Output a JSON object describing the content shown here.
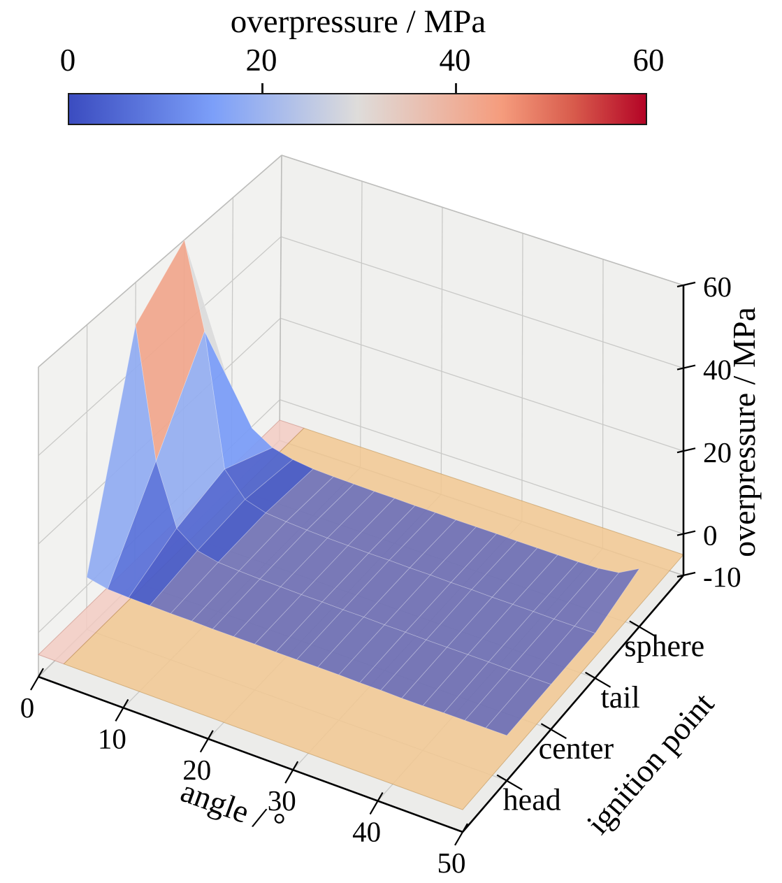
{
  "colorbar": {
    "title": "overpressure / MPa",
    "tick_labels": [
      "0",
      "20",
      "40",
      "60"
    ],
    "tick_values": [
      0,
      20,
      40,
      60
    ],
    "range": [
      0,
      60
    ],
    "colormap": "coolwarm",
    "gradient_stops": [
      "#3b4cc0",
      "#5b75dc",
      "#7c9ff9",
      "#adbeea",
      "#dedcda",
      "#eabcac",
      "#f59c7d",
      "#d85b4c",
      "#b40426"
    ]
  },
  "axes": {
    "x": {
      "label": "angle / °",
      "tick_labels": [
        "0",
        "10",
        "20",
        "30",
        "40",
        "50"
      ],
      "tick_values": [
        0,
        10,
        20,
        30,
        40,
        50
      ],
      "range": [
        0,
        50
      ]
    },
    "y": {
      "label": "ignition point",
      "tick_labels": [
        "head",
        "center",
        "tail",
        "sphere"
      ]
    },
    "z": {
      "label": "overpressure / MPa",
      "tick_labels": [
        "60",
        "40",
        "20",
        "0",
        "-10"
      ],
      "tick_values": [
        60,
        40,
        20,
        0,
        -10
      ],
      "range": [
        -10,
        60
      ]
    }
  },
  "chart_data": {
    "type": "surface",
    "title": "",
    "x_label": "angle / °",
    "y_label": "ignition point",
    "z_label": "overpressure / MPa",
    "x_angle_deg": [
      0,
      2.5,
      5,
      7.5,
      10,
      12.5,
      15,
      17.5,
      20,
      22.5,
      25,
      27.5,
      30,
      32.5,
      35,
      37.5,
      40,
      42.5,
      45,
      47.5,
      50
    ],
    "y_categories": [
      "head",
      "center",
      "tail",
      "sphere"
    ],
    "series": [
      {
        "name": "head",
        "values": [
          2,
          1,
          0.8,
          0.7,
          0.6,
          0.6,
          0.5,
          0.5,
          0.5,
          0.4,
          0.4,
          0.4,
          0.4,
          0.3,
          0.3,
          0.2,
          0.2,
          0.3,
          0.3,
          0.3,
          0.3
        ]
      },
      {
        "name": "center",
        "values": [
          50,
          20,
          6,
          2.5,
          1.5,
          1.2,
          1.0,
          0.9,
          0.8,
          0.8,
          0.7,
          0.7,
          0.6,
          0.6,
          0.5,
          0.5,
          0.5,
          0.5,
          0.4,
          0.4,
          0.4
        ]
      },
      {
        "name": "tail",
        "values": [
          60,
          40,
          9,
          3.5,
          2,
          1.6,
          1.3,
          1.1,
          1.0,
          0.9,
          0.9,
          0.8,
          0.8,
          0.7,
          0.7,
          0.6,
          0.6,
          0.6,
          0.5,
          0.5,
          0.5
        ]
      },
      {
        "name": "sphere",
        "values": [
          13,
          6,
          3,
          1.8,
          1.2,
          1.0,
          0.9,
          0.8,
          0.8,
          0.7,
          0.7,
          0.6,
          0.6,
          0.6,
          0.5,
          0.5,
          0.5,
          0.5,
          0.6,
          1.2,
          3.8
        ]
      }
    ],
    "z_unit": "MPa",
    "colormap": "coolwarm",
    "color_range": [
      0,
      60
    ],
    "zlim": [
      -10,
      60
    ],
    "legend": "none",
    "grid": true,
    "overlay_plane": {
      "z": -5,
      "color": "#f2c892",
      "alpha": 0.85,
      "highlight_strip": {
        "x_range": [
          0,
          3
        ],
        "color": "#f3ccc3"
      }
    }
  }
}
